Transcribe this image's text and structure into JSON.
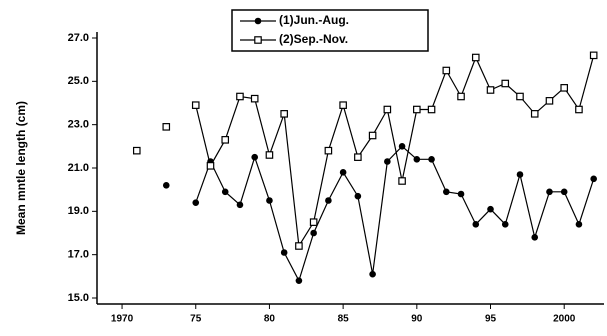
{
  "chart_data": {
    "type": "line",
    "y_label": "Mean mntle length (cm)",
    "x": [
      1971,
      1972,
      1973,
      1974,
      1975,
      1976,
      1977,
      1978,
      1979,
      1980,
      1981,
      1982,
      1983,
      1984,
      1985,
      1986,
      1987,
      1988,
      1989,
      1990,
      1991,
      1992,
      1993,
      1994,
      1995,
      1996,
      1997,
      1998,
      1999,
      2000,
      2001,
      2002
    ],
    "series": [
      {
        "name": "(1)Jun.-Aug.",
        "color": "#000000",
        "marker": "circle",
        "values": [
          null,
          null,
          20.2,
          null,
          19.4,
          21.3,
          19.9,
          19.3,
          21.5,
          19.5,
          17.1,
          15.8,
          18.0,
          19.5,
          20.8,
          19.7,
          16.1,
          21.3,
          22.0,
          21.4,
          21.4,
          19.9,
          19.8,
          18.4,
          19.1,
          18.4,
          20.7,
          17.8,
          19.9,
          19.9,
          18.4,
          20.5
        ]
      },
      {
        "name": "(2)Sep.-Nov.",
        "color": "#000000",
        "marker": "square",
        "values": [
          21.8,
          null,
          22.9,
          null,
          23.9,
          21.1,
          22.3,
          24.3,
          24.2,
          21.6,
          23.5,
          17.4,
          18.5,
          21.8,
          23.9,
          21.5,
          22.5,
          23.7,
          20.4,
          23.7,
          23.7,
          25.5,
          24.3,
          26.1,
          24.6,
          24.9,
          24.3,
          23.5,
          24.1,
          24.7,
          23.7,
          26.2
        ]
      }
    ],
    "xlim": [
      1968.3,
      2002.7
    ],
    "xticks": [
      1970,
      {
        "value": 1975,
        "label": "75"
      },
      {
        "value": 1980,
        "label": "80"
      },
      {
        "value": 1985,
        "label": "85"
      },
      {
        "value": 1990,
        "label": "90"
      },
      {
        "value": 1995,
        "label": "95"
      },
      2000
    ],
    "ylim": [
      15,
      27
    ],
    "yticks": [
      {
        "value": 15,
        "label": "15.0"
      },
      {
        "value": 17,
        "label": "17.0"
      },
      {
        "value": 19,
        "label": "19.0"
      },
      {
        "value": 21,
        "label": "21.0"
      },
      {
        "value": 23,
        "label": "23.0"
      },
      {
        "value": 25,
        "label": "25.0"
      },
      {
        "value": 27,
        "label": "27.0"
      }
    ],
    "grid": false,
    "legend": "top"
  }
}
